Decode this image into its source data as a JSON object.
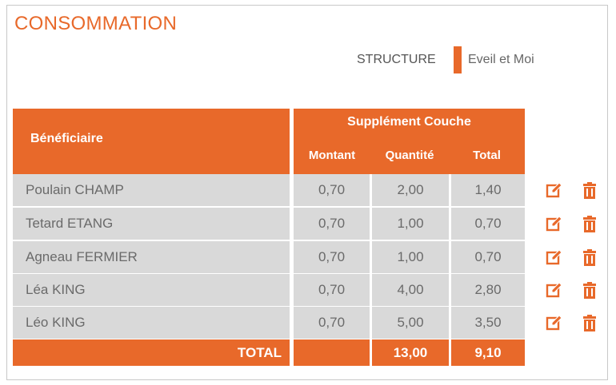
{
  "page": {
    "title": "CONSOMMATION"
  },
  "structure": {
    "label": "STRUCTURE",
    "value": "Eveil et Moi",
    "accent": "#e8692a"
  },
  "table": {
    "header": {
      "beneficiary": "Bénéficiaire",
      "group": "Supplément Couche",
      "amount": "Montant",
      "quantity": "Quantité",
      "total": "Total"
    },
    "rows": [
      {
        "name": "Poulain CHAMP",
        "amount": "0,70",
        "quantity": "2,00",
        "total": "1,40"
      },
      {
        "name": "Tetard ETANG",
        "amount": "0,70",
        "quantity": "1,00",
        "total": "0,70"
      },
      {
        "name": "Agneau FERMIER",
        "amount": "0,70",
        "quantity": "1,00",
        "total": "0,70"
      },
      {
        "name": "Léa KING",
        "amount": "0,70",
        "quantity": "4,00",
        "total": "2,80"
      },
      {
        "name": "Léo KING",
        "amount": "0,70",
        "quantity": "5,00",
        "total": "3,50"
      }
    ],
    "footer": {
      "label": "TOTAL",
      "quantity": "13,00",
      "total": "9,10"
    }
  },
  "icons": {
    "edit": "edit-icon",
    "delete": "trash-icon"
  }
}
